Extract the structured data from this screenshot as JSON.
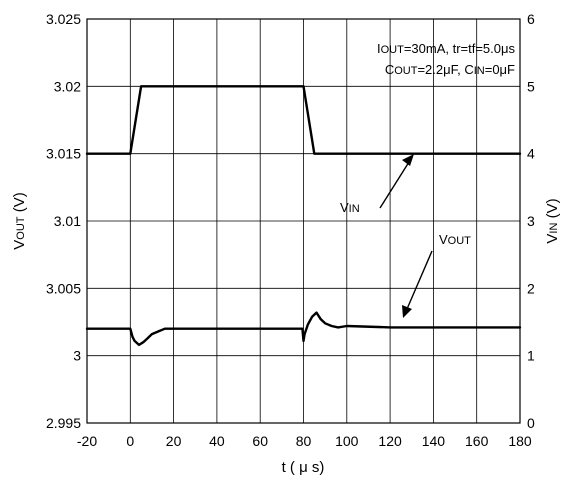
{
  "chart_data": {
    "type": "line",
    "title": "",
    "xlabel": "t ( μ s)",
    "ylabel_left": {
      "main": "V",
      "sub": "OUT",
      "unit": " (V)"
    },
    "ylabel_right": {
      "main": "V",
      "sub": "IN",
      "unit": " (V)"
    },
    "x_ticks": [
      "-20",
      "0",
      "20",
      "40",
      "60",
      "80",
      "100",
      "120",
      "140",
      "160",
      "180"
    ],
    "y_left_ticks": [
      "2.995",
      "3",
      "3.005",
      "3.01",
      "3.015",
      "3.02",
      "3.025"
    ],
    "y_right_ticks": [
      "0",
      "1",
      "2",
      "3",
      "4",
      "5",
      "6"
    ],
    "xlim": [
      -20,
      180
    ],
    "ylim_left": [
      2.995,
      3.025
    ],
    "ylim_right": [
      0,
      6
    ],
    "grid": true,
    "annotations": {
      "line1": {
        "pre": "I",
        "sub": "OUT",
        "post": "=30mA, tr=tf=5.0μs"
      },
      "line2": {
        "pre1": "C",
        "sub1": "OUT",
        "mid": "=2.2μF, C",
        "sub2": "IN",
        "post": "=0μF"
      }
    },
    "series": [
      {
        "name": "VIN",
        "label_main": "V",
        "label_sub": "IN",
        "axis": "right",
        "x": [
          -20,
          -0.5,
          0,
          5,
          80,
          85,
          180
        ],
        "y": [
          4,
          4,
          4,
          5,
          5,
          4,
          4
        ]
      },
      {
        "name": "VOUT",
        "label_main": "V",
        "label_sub": "OUT",
        "axis": "left",
        "x": [
          -20,
          -1,
          0,
          1,
          2,
          4,
          6,
          8,
          10,
          13,
          16,
          20,
          40,
          60,
          79.5,
          80,
          80.5,
          82,
          84,
          86,
          88,
          90,
          93,
          96,
          100,
          120,
          140,
          160,
          180
        ],
        "y": [
          3.002,
          3.002,
          3.002,
          3.0014,
          3.0011,
          3.0008,
          3.001,
          3.0013,
          3.0016,
          3.0018,
          3.002,
          3.002,
          3.002,
          3.002,
          3.002,
          3.0011,
          3.0016,
          3.0023,
          3.0029,
          3.0032,
          3.0027,
          3.0024,
          3.0022,
          3.0021,
          3.0022,
          3.0021,
          3.0021,
          3.0021,
          3.0021
        ]
      }
    ]
  }
}
